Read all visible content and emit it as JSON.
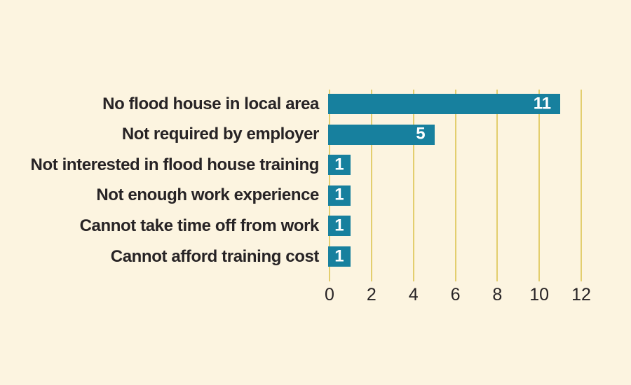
{
  "chart_data": {
    "type": "bar",
    "orientation": "horizontal",
    "title": "",
    "xlabel": "",
    "ylabel": "",
    "categories": [
      "No flood house in local area",
      "Not required by employer",
      "Not interested in flood house training",
      "Not enough work experience",
      "Cannot take time off from work",
      "Cannot afford training cost"
    ],
    "values": [
      11,
      5,
      1,
      1,
      1,
      1
    ],
    "value_labels": [
      "11",
      "5",
      "1",
      "1",
      "1",
      "1"
    ],
    "x_ticks": [
      "0",
      "2",
      "4",
      "6",
      "8",
      "10",
      "12"
    ],
    "x_tick_values": [
      0,
      2,
      4,
      6,
      8,
      10,
      12
    ],
    "xlim": [
      0,
      12
    ],
    "grid": "vertical-only",
    "legend": "none",
    "colors": {
      "background": "#FCF4E0",
      "bar": "#17809E",
      "gridline": "#E3CE6E",
      "label_text": "#272325",
      "tick_text": "#272325",
      "value_text": "#FFFFFF"
    }
  }
}
